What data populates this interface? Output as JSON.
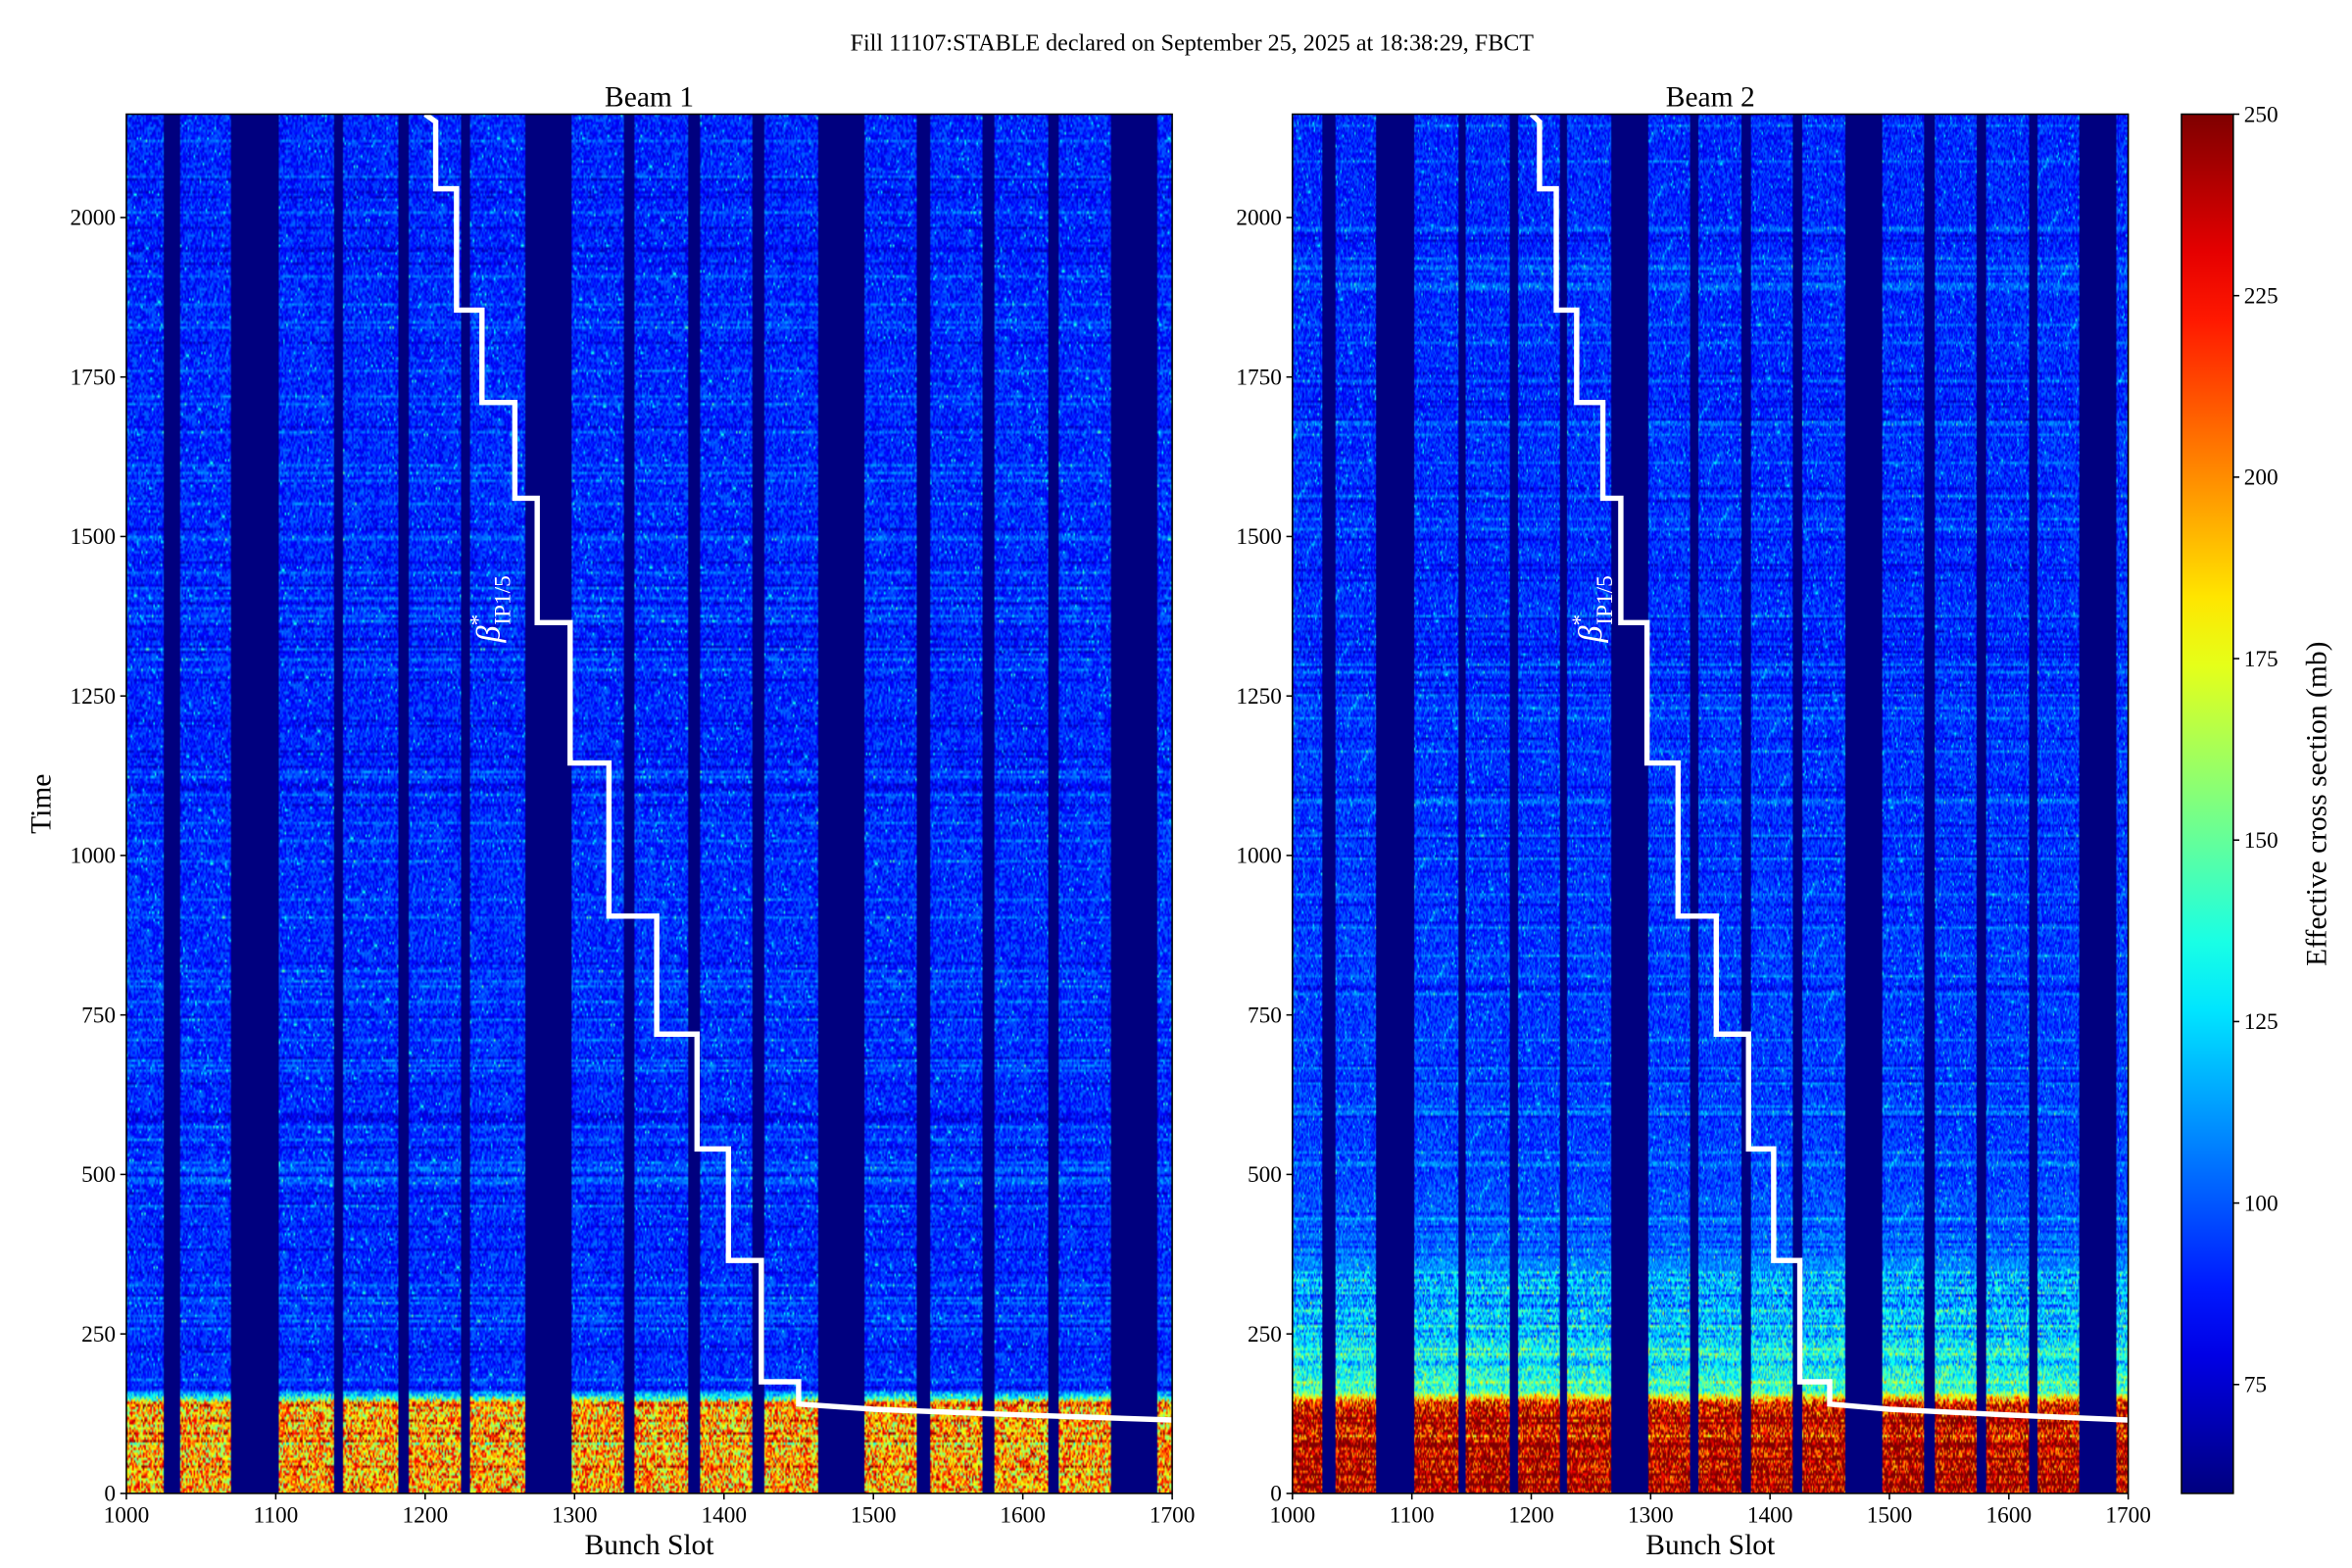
{
  "title": "Fill 11107:STABLE declared on September 25, 2025 at 18:38:29, FBCT",
  "chart_data": [
    {
      "type": "heatmap",
      "title": "Beam 1",
      "xlabel": "Bunch Slot",
      "ylabel": "Time",
      "xlim": [
        1000,
        1700
      ],
      "ylim": [
        0,
        2162
      ],
      "xticks": [
        "1000",
        "1100",
        "1200",
        "1300",
        "1400",
        "1500",
        "1600",
        "1700"
      ],
      "yticks": [
        "0",
        "250",
        "500",
        "750",
        "1000",
        "1250",
        "1500",
        "1750",
        "2000"
      ],
      "empty_slot_ranges": [
        [
          1025,
          1036
        ],
        [
          1070,
          1102
        ],
        [
          1139,
          1145
        ],
        [
          1182,
          1189
        ],
        [
          1224,
          1230
        ],
        [
          1267,
          1298
        ],
        [
          1333,
          1340
        ],
        [
          1376,
          1384
        ],
        [
          1419,
          1427
        ],
        [
          1463,
          1494
        ],
        [
          1529,
          1538
        ],
        [
          1573,
          1581
        ],
        [
          1617,
          1624
        ],
        [
          1659,
          1690
        ]
      ],
      "value_profile": {
        "time": [
          0,
          140,
          160,
          2162
        ],
        "mean_cross_section": [
          195,
          190,
          92,
          90
        ]
      },
      "empty_value": 60
    },
    {
      "type": "heatmap",
      "title": "Beam 2",
      "xlabel": "Bunch Slot",
      "ylabel": "",
      "xlim": [
        1000,
        1700
      ],
      "ylim": [
        0,
        2162
      ],
      "xticks": [
        "1000",
        "1100",
        "1200",
        "1300",
        "1400",
        "1500",
        "1600",
        "1700"
      ],
      "yticks": [
        "0",
        "250",
        "500",
        "750",
        "1000",
        "1250",
        "1500",
        "1750",
        "2000"
      ],
      "empty_slot_ranges": [
        [
          1025,
          1036
        ],
        [
          1070,
          1102
        ],
        [
          1139,
          1145
        ],
        [
          1182,
          1189
        ],
        [
          1224,
          1230
        ],
        [
          1267,
          1298
        ],
        [
          1333,
          1340
        ],
        [
          1376,
          1384
        ],
        [
          1419,
          1427
        ],
        [
          1463,
          1494
        ],
        [
          1529,
          1538
        ],
        [
          1573,
          1581
        ],
        [
          1617,
          1624
        ],
        [
          1659,
          1690
        ]
      ],
      "value_profile": {
        "time": [
          0,
          140,
          160,
          300,
          500,
          2162
        ],
        "mean_cross_section": [
          240,
          230,
          140,
          115,
          95,
          90
        ]
      },
      "empty_value": 60
    }
  ],
  "beta_star_line": {
    "label_symbol": "β",
    "label_superscript": "*",
    "label_subscript": "IP1/5",
    "color": "#ffffff",
    "points": [
      [
        1200,
        2162
      ],
      [
        1207,
        2150
      ],
      [
        1207,
        2045
      ],
      [
        1221,
        2045
      ],
      [
        1221,
        1855
      ],
      [
        1238,
        1855
      ],
      [
        1238,
        1710
      ],
      [
        1260,
        1710
      ],
      [
        1260,
        1560
      ],
      [
        1275,
        1560
      ],
      [
        1275,
        1365
      ],
      [
        1297,
        1365
      ],
      [
        1297,
        1145
      ],
      [
        1323,
        1145
      ],
      [
        1323,
        905
      ],
      [
        1355,
        905
      ],
      [
        1355,
        720
      ],
      [
        1382,
        720
      ],
      [
        1382,
        540
      ],
      [
        1403,
        540
      ],
      [
        1403,
        365
      ],
      [
        1425,
        365
      ],
      [
        1425,
        175
      ],
      [
        1450,
        175
      ],
      [
        1450,
        140
      ],
      [
        1500,
        132
      ],
      [
        1600,
        123
      ],
      [
        1700,
        115
      ]
    ]
  },
  "colorbar": {
    "label": "Effective cross section (mb)",
    "range": [
      60,
      250
    ],
    "ticks": [
      "75",
      "100",
      "125",
      "150",
      "175",
      "200",
      "225",
      "250"
    ],
    "colormap": "jet"
  }
}
